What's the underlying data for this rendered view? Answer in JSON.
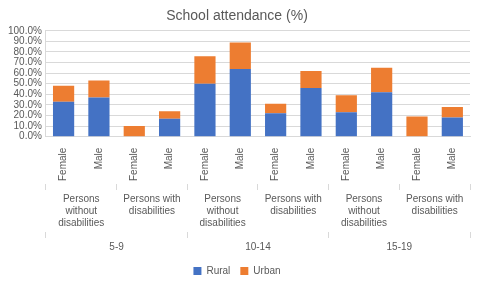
{
  "chart_data": {
    "type": "bar",
    "title": "School attendance (%)",
    "categories": [
      "Female",
      "Male",
      "Female",
      "Male",
      "Female",
      "Male",
      "Female",
      "Male",
      "Female",
      "Male",
      "Female",
      "Male"
    ],
    "category_groups": [
      [
        "Persons without disabilities",
        "Persons with disabilities",
        "Persons without disabilities",
        "Persons with disabilities",
        "Persons without disabilities",
        "Persons with disabilities"
      ],
      [
        "5-9",
        "10-14",
        "15-19"
      ]
    ],
    "series": [
      {
        "name": "Rural",
        "color": "#4472c4",
        "values": [
          33,
          37,
          0,
          17,
          50,
          64,
          22,
          46,
          23,
          42,
          0,
          18
        ]
      },
      {
        "name": "Urban",
        "color": "#ed7d31",
        "values": [
          15,
          16,
          10,
          7,
          26,
          25,
          9,
          16,
          16,
          23,
          19,
          10
        ]
      }
    ],
    "stacked": true,
    "ylim": [
      0,
      100
    ],
    "yticks": [
      {
        "value": 0,
        "label": "0.0%"
      },
      {
        "value": 10,
        "label": "10.0%"
      },
      {
        "value": 20,
        "label": "20.0%"
      },
      {
        "value": 30,
        "label": "30.0%"
      },
      {
        "value": 40,
        "label": "40.0%"
      },
      {
        "value": 50,
        "label": "50.0%"
      },
      {
        "value": 60,
        "label": "60.0%"
      },
      {
        "value": 70,
        "label": "70.0%"
      },
      {
        "value": 80,
        "label": "80.0%"
      },
      {
        "value": 90,
        "label": "90.0%"
      },
      {
        "value": 100,
        "label": "100.0%"
      }
    ],
    "grid": true,
    "legend": "bottom"
  }
}
